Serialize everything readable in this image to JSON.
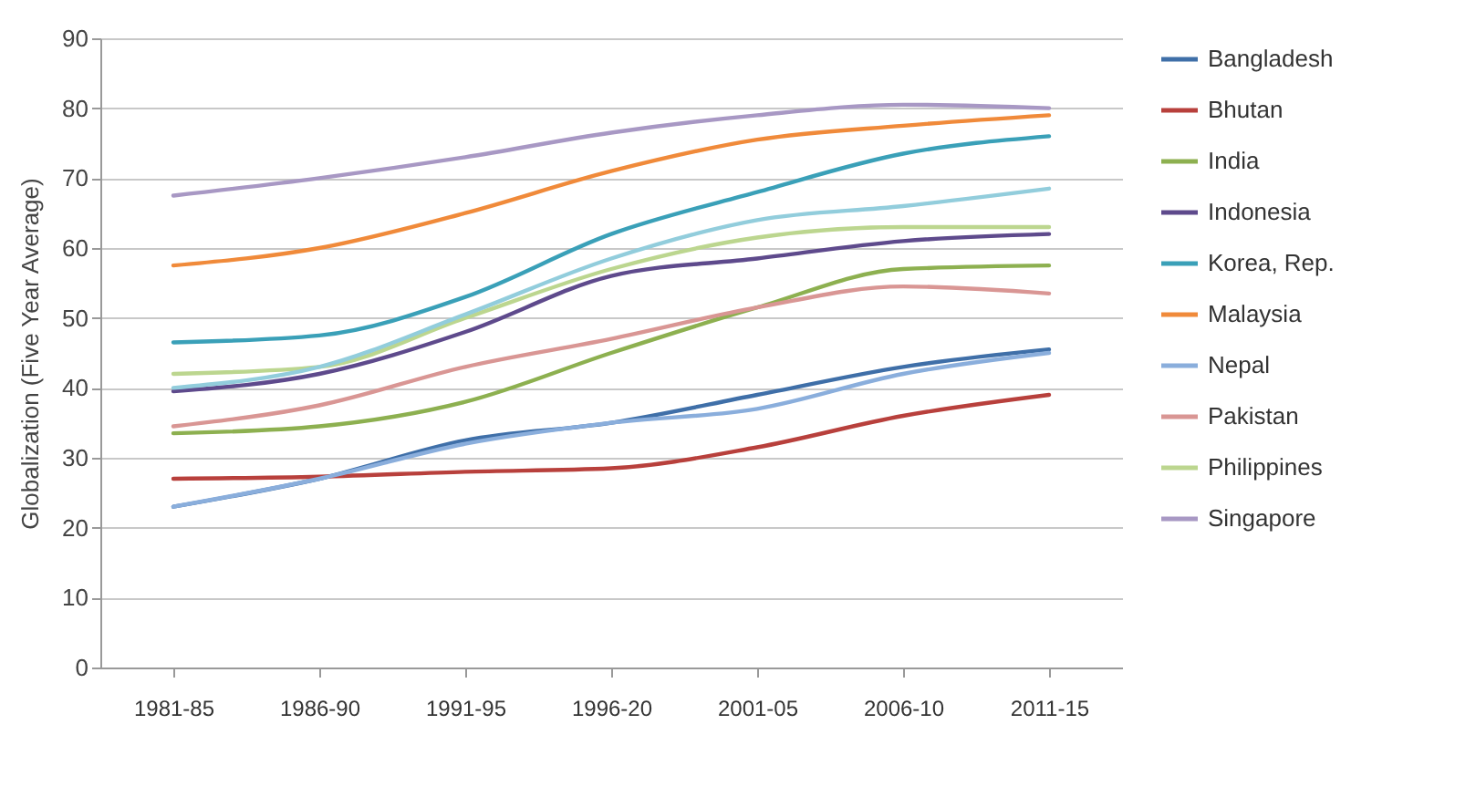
{
  "chart_data": {
    "type": "line",
    "ylabel": "Globalization (Five Year Average)",
    "categories": [
      "1981-85",
      "1986-90",
      "1991-95",
      "1996-20",
      "2001-05",
      "2006-10",
      "2011-15"
    ],
    "ylim": [
      0,
      90
    ],
    "yticks": [
      0,
      10,
      20,
      30,
      40,
      50,
      60,
      70,
      80,
      90
    ],
    "grid": "y",
    "legend": "right",
    "series": [
      {
        "name": "Bangladesh",
        "color": "#3f6fa8",
        "values": [
          23,
          27,
          32.5,
          35,
          39,
          43,
          45.5
        ]
      },
      {
        "name": "Bhutan",
        "color": "#b8403c",
        "values": [
          27,
          27.3,
          28,
          28.5,
          31.5,
          36,
          39
        ]
      },
      {
        "name": "India",
        "color": "#8db050",
        "values": [
          33.5,
          34.5,
          38,
          45,
          51.5,
          57,
          57.5
        ]
      },
      {
        "name": "Indonesia",
        "color": "#5e4a8c",
        "values": [
          39.5,
          42,
          48,
          56,
          58.5,
          61,
          62
        ]
      },
      {
        "name": "Korea, Rep.",
        "color": "#3aa0b8",
        "values": [
          46.5,
          47.5,
          53,
          62,
          68,
          73.5,
          76
        ]
      },
      {
        "name": "Malaysia",
        "color": "#f08a3a",
        "values": [
          57.5,
          60,
          65,
          71,
          75.5,
          77.5,
          79
        ]
      },
      {
        "name": "Nepal",
        "color": "#8aaedc",
        "values": [
          23,
          27,
          32,
          35,
          37,
          42,
          45
        ]
      },
      {
        "name": "Pakistan",
        "color": "#d99694",
        "values": [
          34.5,
          37.5,
          43,
          47,
          51.5,
          54.5,
          53.5
        ]
      },
      {
        "name": "Philippines",
        "color": "#bcd68f",
        "values": [
          42,
          43,
          50,
          57,
          61.5,
          63,
          63
        ]
      },
      {
        "name": "Singapore",
        "color": "#a898c4",
        "values": [
          67.5,
          70,
          73,
          76.5,
          79,
          80.5,
          80
        ]
      },
      {
        "color": "#92cddc",
        "values": [
          40,
          43,
          50.5,
          58.5,
          64,
          66,
          68.5
        ]
      }
    ]
  }
}
